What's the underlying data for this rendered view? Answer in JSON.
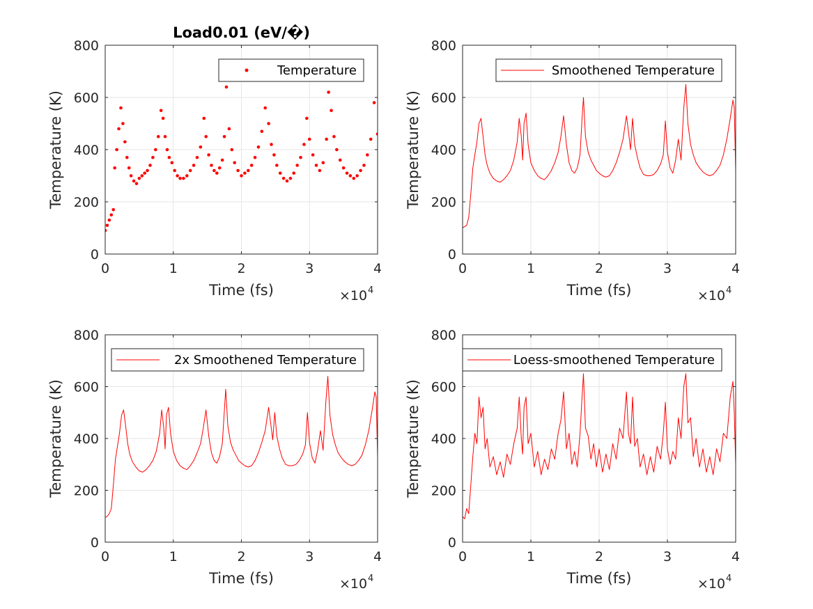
{
  "chart_data": [
    {
      "type": "scatter",
      "title": "Load0.01 (eV/�)",
      "xlabel": "Time (fs)",
      "ylabel": "Temperature (K)",
      "xlim": [
        0,
        40000
      ],
      "ylim": [
        0,
        800
      ],
      "x_ticks": [
        "0",
        "1",
        "2",
        "3",
        "4"
      ],
      "y_ticks": [
        "0",
        "200",
        "400",
        "600",
        "800"
      ],
      "x_multiplier": "×10",
      "x_multiplier_exp": "4",
      "grid": true,
      "legend_position": "top-right",
      "series": [
        {
          "name": "Temperature",
          "color": "#ff0000",
          "marker": "dot",
          "x": [
            0,
            300,
            600,
            900,
            1200,
            1400,
            1700,
            2000,
            2300,
            2600,
            2900,
            3200,
            3500,
            3800,
            4200,
            4600,
            5000,
            5400,
            5800,
            6200,
            6600,
            7000,
            7400,
            7800,
            8200,
            8500,
            8800,
            9100,
            9400,
            9800,
            10200,
            10600,
            11000,
            11500,
            12000,
            12500,
            13000,
            13500,
            14000,
            14500,
            14800,
            15200,
            15600,
            16000,
            16400,
            16800,
            17200,
            17500,
            17800,
            18200,
            18600,
            19000,
            19500,
            20000,
            20500,
            21000,
            21500,
            22000,
            22500,
            23000,
            23500,
            24000,
            24400,
            24800,
            25200,
            25700,
            26200,
            26700,
            27200,
            27700,
            28200,
            28700,
            29200,
            29600,
            30000,
            30500,
            31000,
            31500,
            32000,
            32500,
            32800,
            33200,
            33600,
            34000,
            34500,
            35000,
            35500,
            36000,
            36500,
            37000,
            37500,
            38000,
            38500,
            39000,
            39500,
            40000
          ],
          "values": [
            90,
            110,
            130,
            150,
            170,
            330,
            400,
            480,
            560,
            500,
            430,
            370,
            330,
            300,
            280,
            270,
            290,
            300,
            310,
            320,
            340,
            370,
            400,
            450,
            550,
            520,
            450,
            400,
            370,
            350,
            320,
            300,
            290,
            290,
            300,
            320,
            340,
            370,
            410,
            520,
            450,
            380,
            340,
            320,
            310,
            330,
            360,
            450,
            640,
            480,
            400,
            350,
            320,
            300,
            310,
            320,
            340,
            370,
            410,
            470,
            560,
            500,
            420,
            380,
            340,
            310,
            290,
            280,
            290,
            310,
            340,
            370,
            420,
            520,
            440,
            380,
            340,
            320,
            350,
            440,
            620,
            550,
            450,
            400,
            360,
            330,
            310,
            300,
            290,
            300,
            320,
            340,
            380,
            440,
            580,
            460
          ]
        }
      ]
    },
    {
      "type": "line",
      "title": "",
      "xlabel": "Time (fs)",
      "ylabel": "Temperature (K)",
      "xlim": [
        0,
        40000
      ],
      "ylim": [
        0,
        800
      ],
      "x_ticks": [
        "0",
        "1",
        "2",
        "3",
        "4"
      ],
      "y_ticks": [
        "0",
        "200",
        "400",
        "600",
        "800"
      ],
      "x_multiplier": "×10",
      "x_multiplier_exp": "4",
      "grid": true,
      "legend_position": "top-right",
      "series": [
        {
          "name": "Smoothened Temperature",
          "color": "#ff0000",
          "x": [
            0,
            300,
            600,
            900,
            1200,
            1500,
            1800,
            2100,
            2400,
            2700,
            3000,
            3300,
            3600,
            4000,
            4500,
            5000,
            5500,
            6000,
            6500,
            7000,
            7500,
            8000,
            8300,
            8600,
            8800,
            9000,
            9300,
            9600,
            10000,
            10500,
            11000,
            11500,
            12000,
            12500,
            13000,
            13500,
            14000,
            14400,
            14800,
            15200,
            15600,
            16000,
            16400,
            16800,
            17200,
            17500,
            17700,
            18000,
            18400,
            18800,
            19200,
            19600,
            20000,
            20500,
            21000,
            21500,
            22000,
            22500,
            23000,
            23500,
            24000,
            24300,
            24600,
            24900,
            25200,
            25600,
            26000,
            26500,
            27000,
            27500,
            28000,
            28500,
            29000,
            29400,
            29700,
            30000,
            30400,
            30800,
            31200,
            31600,
            32000,
            32400,
            32700,
            33000,
            33400,
            33800,
            34200,
            34700,
            35200,
            35700,
            36200,
            36700,
            37200,
            37700,
            38200,
            38700,
            39200,
            39600,
            39800,
            40000
          ],
          "values": [
            100,
            105,
            110,
            140,
            230,
            330,
            380,
            430,
            500,
            520,
            450,
            380,
            340,
            310,
            290,
            280,
            275,
            285,
            300,
            320,
            360,
            430,
            520,
            450,
            360,
            500,
            540,
            420,
            350,
            320,
            300,
            290,
            285,
            300,
            320,
            350,
            390,
            450,
            530,
            420,
            350,
            320,
            310,
            330,
            380,
            520,
            600,
            450,
            390,
            360,
            340,
            320,
            310,
            300,
            295,
            300,
            320,
            350,
            390,
            440,
            530,
            470,
            400,
            520,
            420,
            370,
            330,
            305,
            300,
            300,
            305,
            320,
            345,
            380,
            510,
            390,
            330,
            310,
            360,
            440,
            360,
            560,
            650,
            500,
            420,
            380,
            350,
            330,
            315,
            305,
            300,
            305,
            320,
            340,
            380,
            440,
            520,
            590,
            560,
            320
          ]
        }
      ]
    },
    {
      "type": "line",
      "title": "",
      "xlabel": "Time (fs)",
      "ylabel": "Temperature (K)",
      "xlim": [
        0,
        40000
      ],
      "ylim": [
        0,
        800
      ],
      "x_ticks": [
        "0",
        "1",
        "2",
        "3",
        "4"
      ],
      "y_ticks": [
        "0",
        "200",
        "400",
        "600",
        "800"
      ],
      "x_multiplier": "×10",
      "x_multiplier_exp": "4",
      "grid": true,
      "legend_position": "top-right",
      "series": [
        {
          "name": "2x Smoothened Temperature",
          "color": "#ff0000",
          "x": [
            0,
            300,
            600,
            900,
            1200,
            1500,
            1800,
            2100,
            2400,
            2700,
            3000,
            3300,
            3600,
            4000,
            4500,
            5000,
            5500,
            6000,
            6500,
            7000,
            7500,
            8000,
            8300,
            8600,
            8800,
            9000,
            9300,
            9600,
            10000,
            10500,
            11000,
            11500,
            12000,
            12500,
            13000,
            13500,
            14000,
            14400,
            14800,
            15200,
            15600,
            16000,
            16400,
            16800,
            17200,
            17500,
            17700,
            18000,
            18400,
            18800,
            19200,
            19600,
            20000,
            20500,
            21000,
            21500,
            22000,
            22500,
            23000,
            23500,
            24000,
            24300,
            24600,
            24900,
            25200,
            25600,
            26000,
            26500,
            27000,
            27500,
            28000,
            28500,
            29000,
            29400,
            29700,
            30000,
            30400,
            30800,
            31200,
            31600,
            32000,
            32400,
            32700,
            33000,
            33400,
            33800,
            34200,
            34700,
            35200,
            35700,
            36200,
            36700,
            37200,
            37700,
            38200,
            38700,
            39200,
            39600,
            39800,
            40000
          ],
          "values": [
            95,
            100,
            110,
            130,
            220,
            320,
            370,
            420,
            490,
            510,
            450,
            380,
            340,
            310,
            290,
            275,
            270,
            280,
            295,
            315,
            350,
            420,
            510,
            440,
            360,
            490,
            520,
            420,
            350,
            315,
            295,
            285,
            280,
            295,
            315,
            345,
            380,
            440,
            510,
            410,
            345,
            315,
            305,
            330,
            380,
            510,
            590,
            450,
            385,
            355,
            335,
            315,
            305,
            295,
            290,
            295,
            315,
            345,
            385,
            430,
            520,
            460,
            395,
            500,
            410,
            360,
            325,
            300,
            295,
            295,
            300,
            315,
            340,
            375,
            500,
            385,
            325,
            305,
            355,
            430,
            355,
            540,
            640,
            490,
            415,
            375,
            345,
            325,
            310,
            300,
            295,
            300,
            315,
            335,
            375,
            430,
            510,
            580,
            560,
            330
          ]
        }
      ]
    },
    {
      "type": "line",
      "title": "",
      "xlabel": "Time (fs)",
      "ylabel": "Temperature (K)",
      "xlim": [
        0,
        40000
      ],
      "ylim": [
        0,
        800
      ],
      "x_ticks": [
        "0",
        "1",
        "2",
        "3",
        "4"
      ],
      "y_ticks": [
        "0",
        "200",
        "400",
        "600",
        "800"
      ],
      "x_multiplier": "×10",
      "x_multiplier_exp": "4",
      "grid": true,
      "legend_position": "top-right",
      "series": [
        {
          "name": "Loess-smoothened Temperature",
          "color": "#ff0000",
          "x": [
            0,
            300,
            600,
            900,
            1200,
            1500,
            1800,
            2100,
            2400,
            2700,
            3000,
            3300,
            3600,
            4000,
            4500,
            5000,
            5500,
            6000,
            6500,
            7000,
            7500,
            8000,
            8300,
            8600,
            8800,
            9000,
            9300,
            9600,
            10000,
            10500,
            11000,
            11500,
            12000,
            12500,
            13000,
            13500,
            14000,
            14400,
            14800,
            15200,
            15600,
            16000,
            16400,
            16800,
            17200,
            17500,
            17700,
            18000,
            18400,
            18800,
            19200,
            19600,
            20000,
            20500,
            21000,
            21500,
            22000,
            22500,
            23000,
            23500,
            24000,
            24300,
            24600,
            24900,
            25200,
            25600,
            26000,
            26500,
            27000,
            27500,
            28000,
            28500,
            29000,
            29400,
            29700,
            30000,
            30400,
            30800,
            31200,
            31600,
            32000,
            32400,
            32700,
            33000,
            33400,
            33800,
            34200,
            34700,
            35200,
            35700,
            36200,
            36700,
            37200,
            37700,
            38200,
            38700,
            39200,
            39600,
            39800,
            40000
          ],
          "values": [
            100,
            90,
            130,
            110,
            220,
            330,
            420,
            380,
            560,
            480,
            520,
            360,
            400,
            290,
            330,
            260,
            310,
            250,
            340,
            300,
            380,
            440,
            560,
            400,
            340,
            520,
            560,
            380,
            420,
            290,
            350,
            260,
            320,
            280,
            360,
            320,
            420,
            470,
            580,
            360,
            420,
            300,
            350,
            290,
            420,
            560,
            650,
            440,
            410,
            320,
            380,
            290,
            360,
            270,
            340,
            280,
            380,
            320,
            440,
            400,
            580,
            420,
            380,
            560,
            370,
            400,
            290,
            340,
            260,
            330,
            270,
            370,
            320,
            420,
            540,
            360,
            300,
            350,
            320,
            480,
            400,
            600,
            650,
            460,
            480,
            330,
            400,
            290,
            360,
            270,
            330,
            260,
            360,
            310,
            420,
            400,
            560,
            620,
            500,
            300
          ]
        }
      ]
    }
  ]
}
